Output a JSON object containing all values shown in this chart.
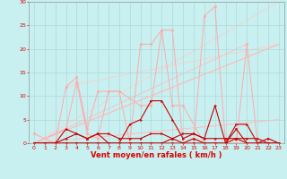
{
  "bg_color": "#c8f0f0",
  "grid_color": "#b0d8d8",
  "xlabel": "Vent moyen/en rafales ( km/h )",
  "xlabel_color": "#dd0000",
  "xlabel_fontsize": 6,
  "tick_color": "#dd0000",
  "tick_fontsize": 4.5,
  "xlim": [
    -0.5,
    23.5
  ],
  "ylim": [
    0,
    30
  ],
  "yticks": [
    0,
    5,
    10,
    15,
    20,
    25,
    30
  ],
  "xticks": [
    0,
    1,
    2,
    3,
    4,
    5,
    6,
    7,
    8,
    9,
    10,
    11,
    12,
    13,
    14,
    15,
    16,
    17,
    18,
    19,
    20,
    21,
    22,
    23
  ],
  "series": [
    {
      "x": [
        0,
        2,
        3,
        4,
        5,
        6,
        7,
        8,
        9,
        10,
        11,
        12,
        13,
        14,
        15,
        16,
        17,
        18,
        19,
        20,
        21,
        22,
        23
      ],
      "y": [
        2,
        0,
        12,
        14,
        3,
        11,
        11,
        11,
        0,
        21,
        21,
        24,
        24,
        0,
        0,
        27,
        29,
        0,
        0,
        21,
        0,
        1,
        0
      ],
      "color": "#ffaaaa",
      "lw": 0.7,
      "marker": "D",
      "ms": 1.5
    },
    {
      "x": [
        0,
        3,
        4,
        5,
        6,
        7,
        8,
        10,
        11,
        12,
        13,
        14,
        16,
        17,
        20,
        21,
        22,
        23
      ],
      "y": [
        0,
        3,
        13,
        2,
        1,
        11,
        11,
        8,
        8,
        24,
        8,
        8,
        0,
        0,
        0,
        0,
        0,
        0
      ],
      "color": "#ffaaaa",
      "lw": 0.7,
      "marker": "D",
      "ms": 1.5
    },
    {
      "x": [
        0,
        1,
        2,
        3,
        4,
        5,
        6,
        7,
        8,
        9,
        10,
        11,
        12,
        13,
        14,
        15,
        16,
        17,
        18,
        19,
        20,
        21,
        22,
        23
      ],
      "y": [
        0,
        0,
        0,
        0,
        0,
        0,
        0,
        0,
        0,
        0,
        0,
        0,
        0,
        0,
        0,
        0,
        0,
        0,
        0,
        0,
        0,
        0,
        0,
        0
      ],
      "color": "#ffcccc",
      "lw": 0.7,
      "marker": null,
      "ms": 0
    },
    {
      "x": [
        0,
        23
      ],
      "y": [
        0,
        5
      ],
      "color": "#ffbbbb",
      "lw": 0.7,
      "marker": null,
      "ms": 0
    },
    {
      "x": [
        0,
        23
      ],
      "y": [
        0,
        21
      ],
      "color": "#ffbbbb",
      "lw": 0.7,
      "marker": null,
      "ms": 0
    },
    {
      "x": [
        0,
        1,
        2,
        3,
        4,
        5,
        6,
        7,
        8,
        9,
        10,
        11,
        12,
        13,
        14,
        15,
        16,
        17,
        18,
        19,
        20,
        21,
        22,
        23
      ],
      "y": [
        0,
        0,
        0,
        0,
        0,
        0,
        0,
        0,
        0,
        4,
        5,
        9,
        9,
        5,
        1,
        2,
        1,
        8,
        0,
        4,
        4,
        0,
        1,
        0
      ],
      "color": "#cc0000",
      "lw": 0.8,
      "marker": ">",
      "ms": 1.5
    },
    {
      "x": [
        0,
        1,
        2,
        3,
        4,
        5,
        6,
        7,
        8,
        9,
        10,
        11,
        12,
        13,
        14,
        15,
        16,
        17,
        18,
        19,
        20,
        21,
        22,
        23
      ],
      "y": [
        0,
        0,
        0,
        1,
        2,
        1,
        2,
        2,
        1,
        1,
        1,
        2,
        2,
        1,
        2,
        2,
        1,
        1,
        1,
        1,
        1,
        1,
        0,
        0
      ],
      "color": "#cc0000",
      "lw": 0.8,
      "marker": ">",
      "ms": 1.5
    },
    {
      "x": [
        0,
        1,
        2,
        3,
        4,
        5,
        6,
        7,
        8,
        9,
        10,
        11,
        12,
        13,
        14,
        15,
        16,
        17,
        18,
        19,
        20,
        21,
        22,
        23
      ],
      "y": [
        0,
        0,
        0,
        3,
        2,
        1,
        2,
        0,
        0,
        0,
        0,
        0,
        0,
        1,
        0,
        1,
        0,
        0,
        0,
        1,
        0,
        0,
        0,
        0
      ],
      "color": "#cc0000",
      "lw": 0.8,
      "marker": "^",
      "ms": 1.5
    },
    {
      "x": [
        0,
        1,
        2,
        3,
        4,
        5,
        6,
        7,
        8,
        9,
        10,
        11,
        12,
        13,
        14,
        15,
        16,
        17,
        18,
        19,
        20,
        21,
        22,
        23
      ],
      "y": [
        0,
        0,
        0,
        0,
        0,
        0,
        0,
        0,
        0,
        0,
        0,
        0,
        0,
        0,
        0,
        0,
        0,
        0,
        0,
        3,
        0,
        0,
        0,
        0
      ],
      "color": "#cc0000",
      "lw": 0.8,
      "marker": "v",
      "ms": 1.5
    }
  ]
}
